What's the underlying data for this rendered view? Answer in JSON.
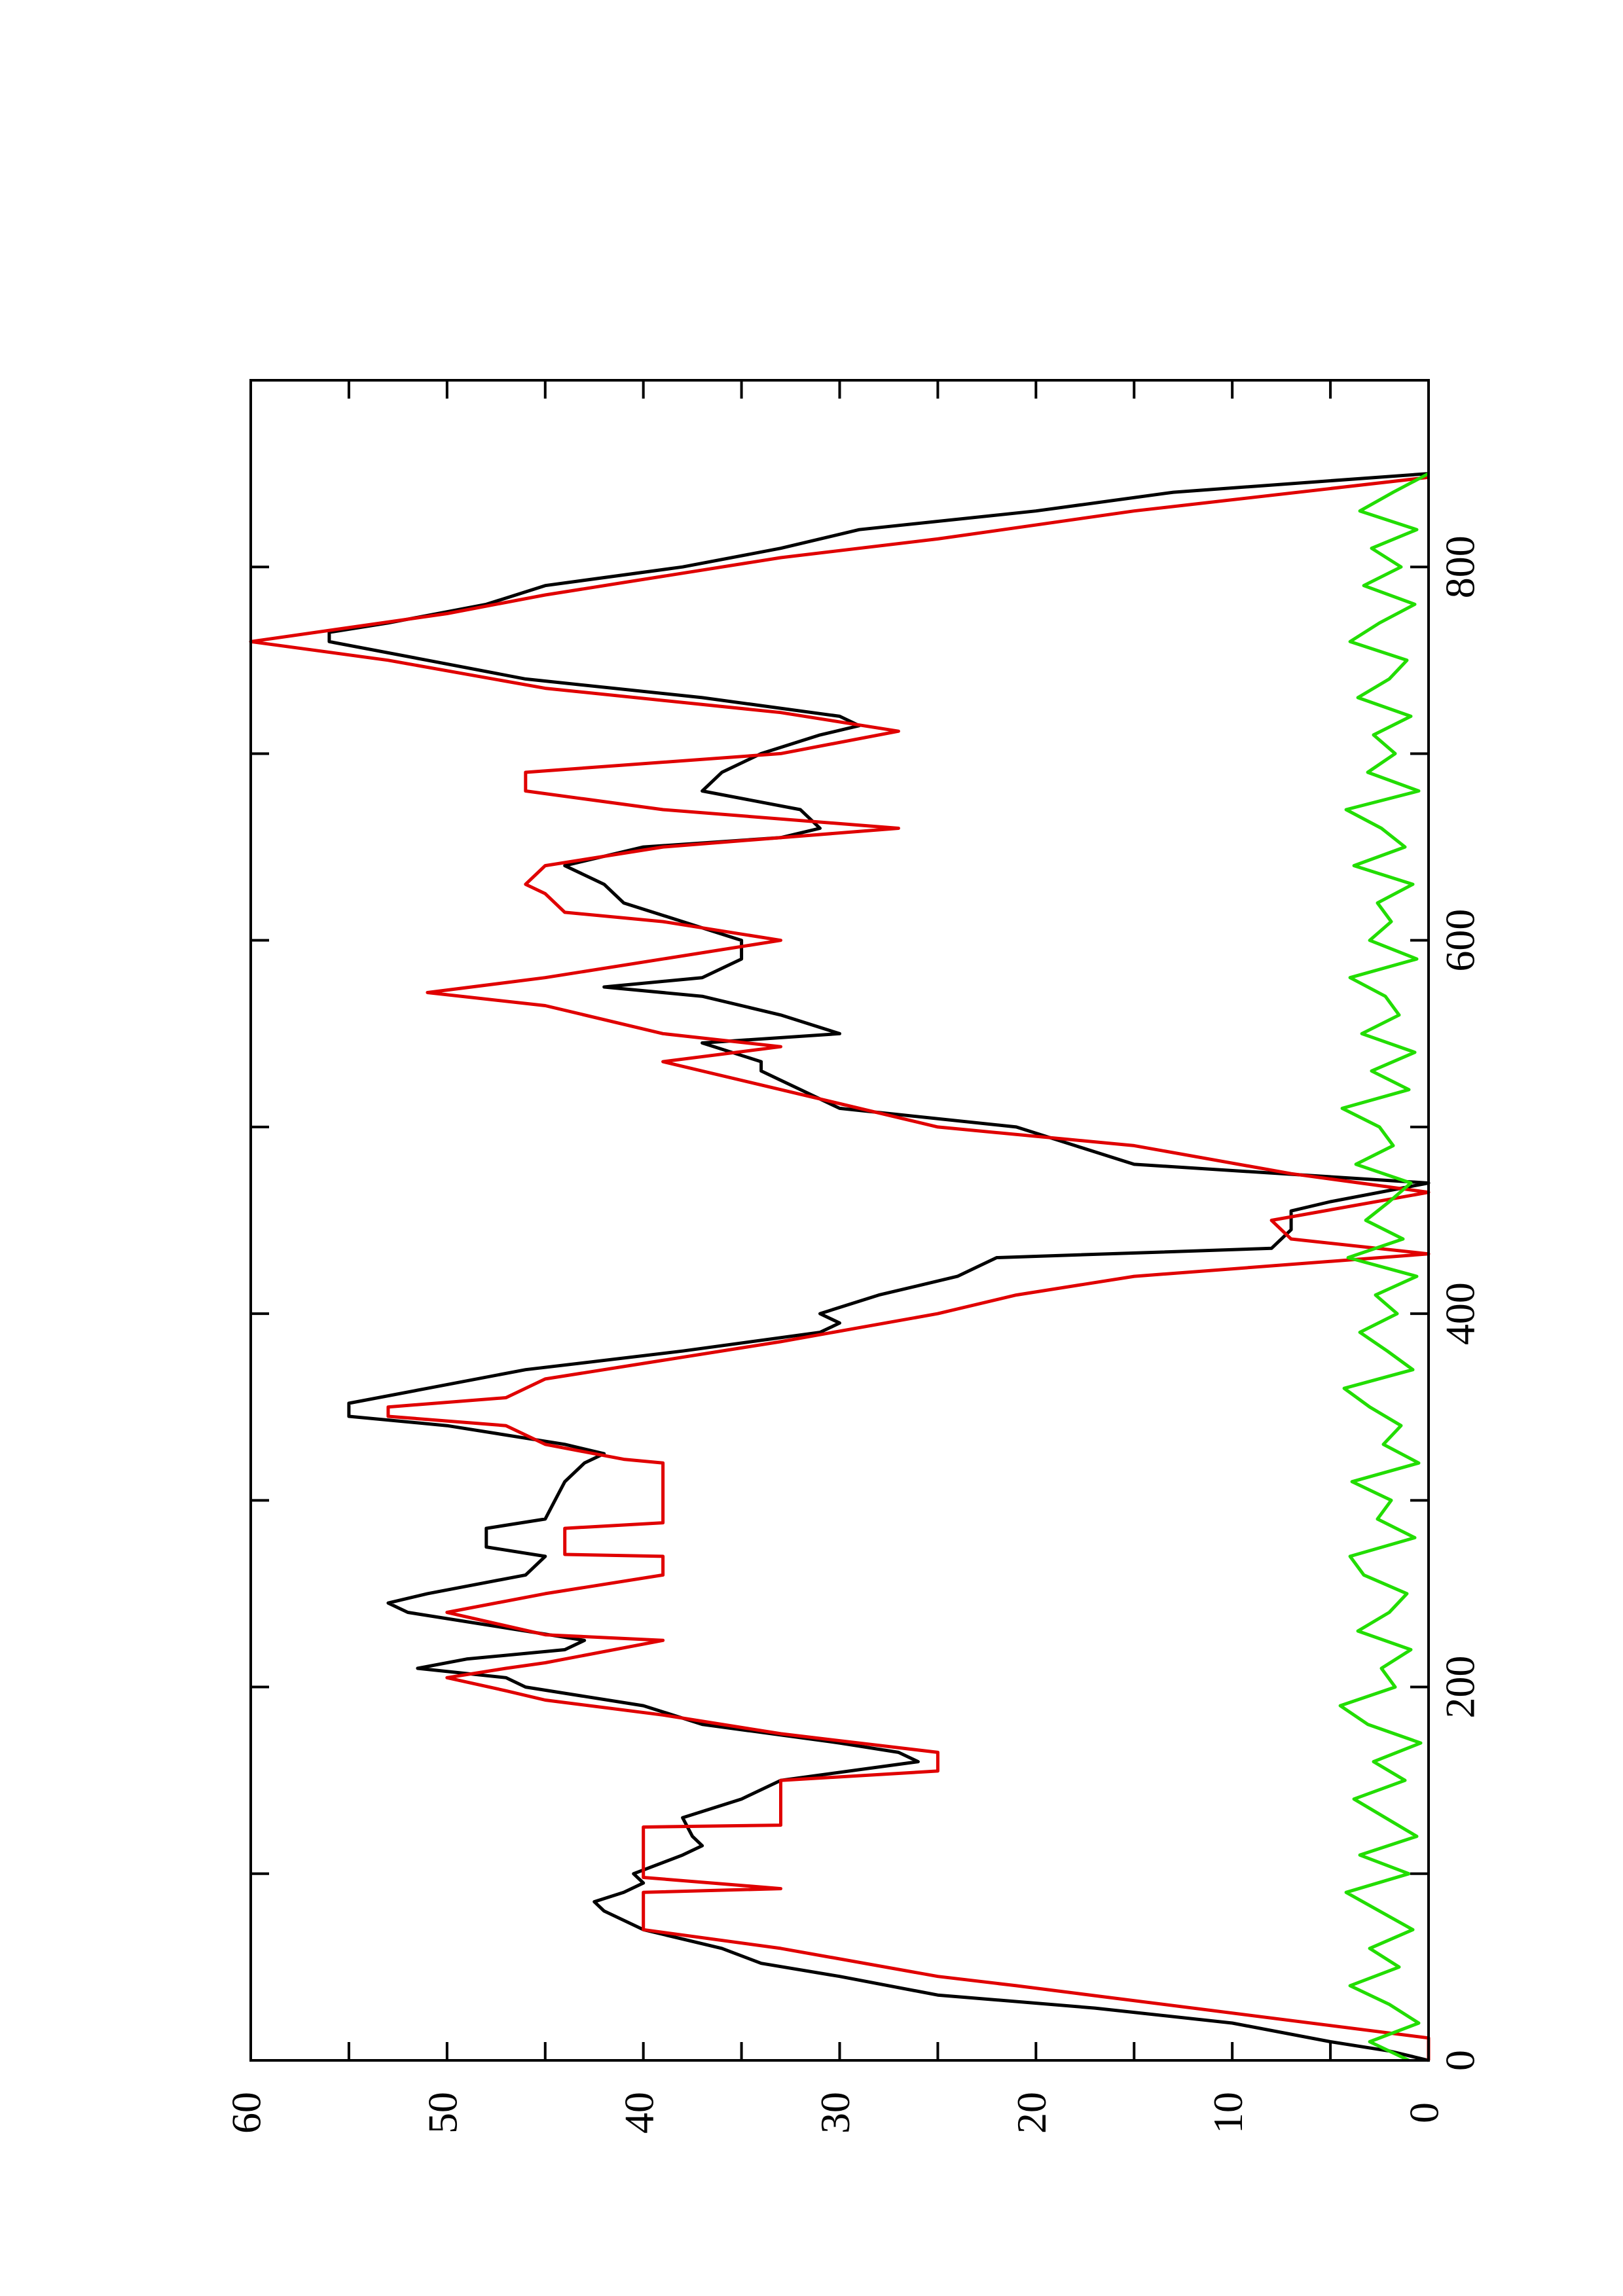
{
  "chart_data": {
    "type": "line",
    "xlim": [
      0,
      900
    ],
    "ylim": [
      0,
      60
    ],
    "xticks": [
      0,
      200,
      400,
      600,
      800
    ],
    "xminorticks": [
      100,
      300,
      500,
      700
    ],
    "yticks": [
      0,
      10,
      20,
      30,
      40,
      50,
      60
    ],
    "yminorticks": [
      5,
      15,
      25,
      35,
      45,
      55
    ],
    "series": [
      {
        "color": "#000000",
        "x": [
          0,
          5,
          10,
          20,
          28,
          35,
          45,
          52,
          60,
          70,
          80,
          85,
          90,
          95,
          100,
          110,
          115,
          120,
          130,
          140,
          150,
          160,
          165,
          170,
          180,
          190,
          200,
          205,
          210,
          215,
          220,
          225,
          230,
          240,
          245,
          250,
          260,
          270,
          275,
          285,
          290,
          300,
          310,
          320,
          325,
          330,
          340,
          345,
          352,
          360,
          370,
          380,
          390,
          395,
          400,
          410,
          420,
          425,
          430,
          435,
          445,
          455,
          460,
          470,
          480,
          490,
          500,
          510,
          520,
          530,
          535,
          545,
          550,
          560,
          570,
          575,
          580,
          590,
          600,
          610,
          620,
          630,
          640,
          650,
          655,
          660,
          670,
          680,
          690,
          700,
          710,
          715,
          720,
          730,
          740,
          750,
          760,
          765,
          770,
          780,
          790,
          800,
          810,
          820,
          830,
          840,
          850
        ],
        "values": [
          0,
          2,
          5,
          10,
          17,
          25,
          30,
          34,
          36,
          40,
          42,
          42.5,
          41,
          40,
          40.5,
          38,
          37,
          37.5,
          38,
          35,
          33,
          26,
          27,
          30,
          37,
          40,
          46,
          47,
          51.5,
          49,
          44,
          43,
          46,
          52,
          53,
          51,
          46,
          45,
          48,
          48,
          45,
          44.5,
          44,
          43,
          42,
          44,
          50,
          55,
          55,
          51,
          46,
          38,
          31,
          30,
          31,
          28,
          24,
          23,
          22,
          8,
          7,
          7,
          5,
          0,
          15,
          18,
          21,
          30,
          32,
          34,
          34,
          37,
          30,
          33,
          37,
          42,
          37,
          35,
          35,
          38,
          41,
          42,
          44,
          40,
          33,
          31,
          32,
          37,
          36,
          34,
          31,
          29,
          30,
          37,
          46,
          51,
          56,
          56,
          53,
          48,
          45,
          38,
          33,
          29,
          20,
          13,
          0
        ]
      },
      {
        "color": "#e00000",
        "x": [
          0,
          12,
          40,
          45,
          60,
          70,
          90,
          92,
          98,
          125,
          126,
          150,
          155,
          165,
          175,
          185,
          193,
          198,
          205,
          210,
          213,
          225,
          228,
          240,
          250,
          260,
          270,
          271,
          285,
          288,
          320,
          322,
          330,
          340,
          345,
          350,
          355,
          365,
          375,
          385,
          400,
          410,
          420,
          432,
          440,
          450,
          465,
          475,
          490,
          500,
          520,
          535,
          543,
          550,
          565,
          572,
          580,
          590,
          600,
          610,
          615,
          625,
          630,
          640,
          650,
          660,
          670,
          680,
          690,
          700,
          712,
          722,
          735,
          750,
          760,
          775,
          785,
          805,
          815,
          830,
          848
        ],
        "values": [
          0,
          0,
          21,
          25,
          33,
          40,
          40,
          33,
          40,
          40,
          33,
          33,
          25,
          25,
          33,
          39,
          45,
          47,
          50,
          47,
          45,
          39,
          45,
          50,
          45,
          39,
          39,
          44,
          44,
          39,
          39,
          41,
          45,
          47,
          53,
          53,
          47,
          45,
          39,
          33,
          25,
          21,
          15,
          0,
          7,
          8,
          0,
          7,
          15,
          25,
          33,
          39,
          33,
          39,
          45,
          51,
          45,
          39,
          33,
          39,
          44,
          45,
          46,
          45,
          39,
          27,
          39,
          46,
          46,
          33,
          27,
          33,
          45,
          53,
          60,
          50,
          45,
          33,
          25,
          15,
          0
        ]
      },
      {
        "color": "#22dd00",
        "x": [
          0,
          10,
          20,
          30,
          40,
          50,
          60,
          70,
          80,
          90,
          100,
          110,
          120,
          130,
          140,
          150,
          160,
          170,
          180,
          190,
          200,
          210,
          220,
          230,
          240,
          250,
          260,
          270,
          280,
          290,
          300,
          310,
          320,
          330,
          340,
          350,
          360,
          370,
          380,
          390,
          400,
          410,
          420,
          430,
          440,
          450,
          460,
          470,
          480,
          490,
          500,
          510,
          520,
          530,
          540,
          550,
          560,
          570,
          580,
          590,
          600,
          610,
          620,
          630,
          640,
          650,
          660,
          670,
          680,
          690,
          700,
          710,
          720,
          730,
          740,
          750,
          760,
          770,
          780,
          790,
          800,
          810,
          820,
          830,
          840,
          850
        ],
        "values": [
          1,
          3,
          0.5,
          2,
          4,
          1.5,
          3,
          0.8,
          2.5,
          4.2,
          1,
          3.5,
          0.6,
          2.2,
          3.8,
          1.2,
          2.8,
          0.4,
          3.1,
          4.5,
          1.7,
          2.4,
          0.9,
          3.6,
          2,
          1.1,
          3.3,
          4,
          0.7,
          2.6,
          1.9,
          3.9,
          0.5,
          2.3,
          1.4,
          3,
          4.3,
          0.8,
          2.1,
          3.5,
          1.6,
          2.7,
          0.6,
          4.1,
          1.3,
          3.2,
          2,
          0.9,
          3.7,
          1.8,
          2.5,
          4.4,
          1,
          2.9,
          0.7,
          3.4,
          1.5,
          2.2,
          4,
          0.6,
          3,
          1.9,
          2.6,
          0.8,
          3.8,
          1.2,
          2.4,
          4.2,
          0.5,
          3.1,
          1.7,
          2.8,
          0.9,
          3.6,
          2,
          1.1,
          4,
          2.5,
          0.7,
          3.3,
          1.4,
          2.9,
          0.6,
          3.5,
          1.8,
          0
        ]
      }
    ]
  }
}
